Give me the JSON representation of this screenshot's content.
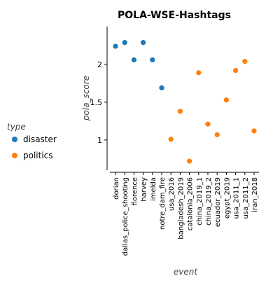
{
  "chart_data": {
    "type": "scatter",
    "title": "POLA-WSE-Hashtags",
    "xlabel": "event",
    "ylabel": "pola_score",
    "legend": {
      "title": "type",
      "placement": "left"
    },
    "categories": [
      "dorian",
      "dallas_police_shooting",
      "florence",
      "harvey",
      "imelda",
      "notre_dam_fire",
      "usa_2016",
      "bangladesh_2019",
      "catalonia_2006",
      "china_2019_1",
      "china_2019_2",
      "ecuador_2019",
      "egypt_2019",
      "usa_2011_1",
      "usa_2011_2",
      "iran_2018"
    ],
    "yticks": [
      1,
      1.5,
      2
    ],
    "ylim": [
      0.6,
      2.5
    ],
    "grid": false,
    "series": [
      {
        "name": "disaster",
        "color": "#1f77b4",
        "points": [
          {
            "x": "dorian",
            "y": 2.24
          },
          {
            "x": "dallas_police_shooting",
            "y": 2.29
          },
          {
            "x": "florence",
            "y": 2.06
          },
          {
            "x": "harvey",
            "y": 2.29
          },
          {
            "x": "imelda",
            "y": 2.06
          },
          {
            "x": "notre_dam_fire",
            "y": 1.69
          }
        ]
      },
      {
        "name": "politics",
        "color": "#ff7f0e",
        "points": [
          {
            "x": "usa_2016",
            "y": 1.01
          },
          {
            "x": "bangladesh_2019",
            "y": 1.38
          },
          {
            "x": "catalonia_2006",
            "y": 0.72
          },
          {
            "x": "china_2019_1",
            "y": 1.89
          },
          {
            "x": "china_2019_2",
            "y": 1.21
          },
          {
            "x": "ecuador_2019",
            "y": 1.07
          },
          {
            "x": "egypt_2019",
            "y": 1.53
          },
          {
            "x": "usa_2011_1",
            "y": 1.92
          },
          {
            "x": "usa_2011_2",
            "y": 2.04
          },
          {
            "x": "iran_2018",
            "y": 1.12
          }
        ]
      }
    ]
  }
}
